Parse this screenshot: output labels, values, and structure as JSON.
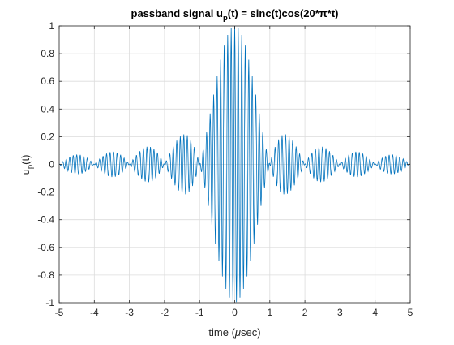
{
  "chart_data": {
    "type": "line",
    "title_parts": [
      "passband signal u",
      "p",
      "(t) = sinc(t)cos(20*π*t)"
    ],
    "xlabel_parts": [
      "time (",
      "μ",
      "sec)"
    ],
    "ylabel_parts": [
      "u",
      "p",
      "(t)"
    ],
    "xlim": [
      -5,
      5
    ],
    "ylim": [
      -1,
      1
    ],
    "x_ticks": [
      "-5",
      "-4",
      "-3",
      "-2",
      "-1",
      "0",
      "1",
      "2",
      "3",
      "4",
      "5"
    ],
    "y_ticks": [
      "-1",
      "-0.8",
      "-0.6",
      "-0.4",
      "-0.2",
      "0",
      "0.2",
      "0.4",
      "0.6",
      "0.8",
      "1"
    ],
    "grid": true,
    "series": [
      {
        "function": "sinc(t)cos(20*pi*t)",
        "x_start": -5,
        "x_end": 5,
        "x_step": 0.01,
        "color": "#0072BD"
      }
    ]
  }
}
